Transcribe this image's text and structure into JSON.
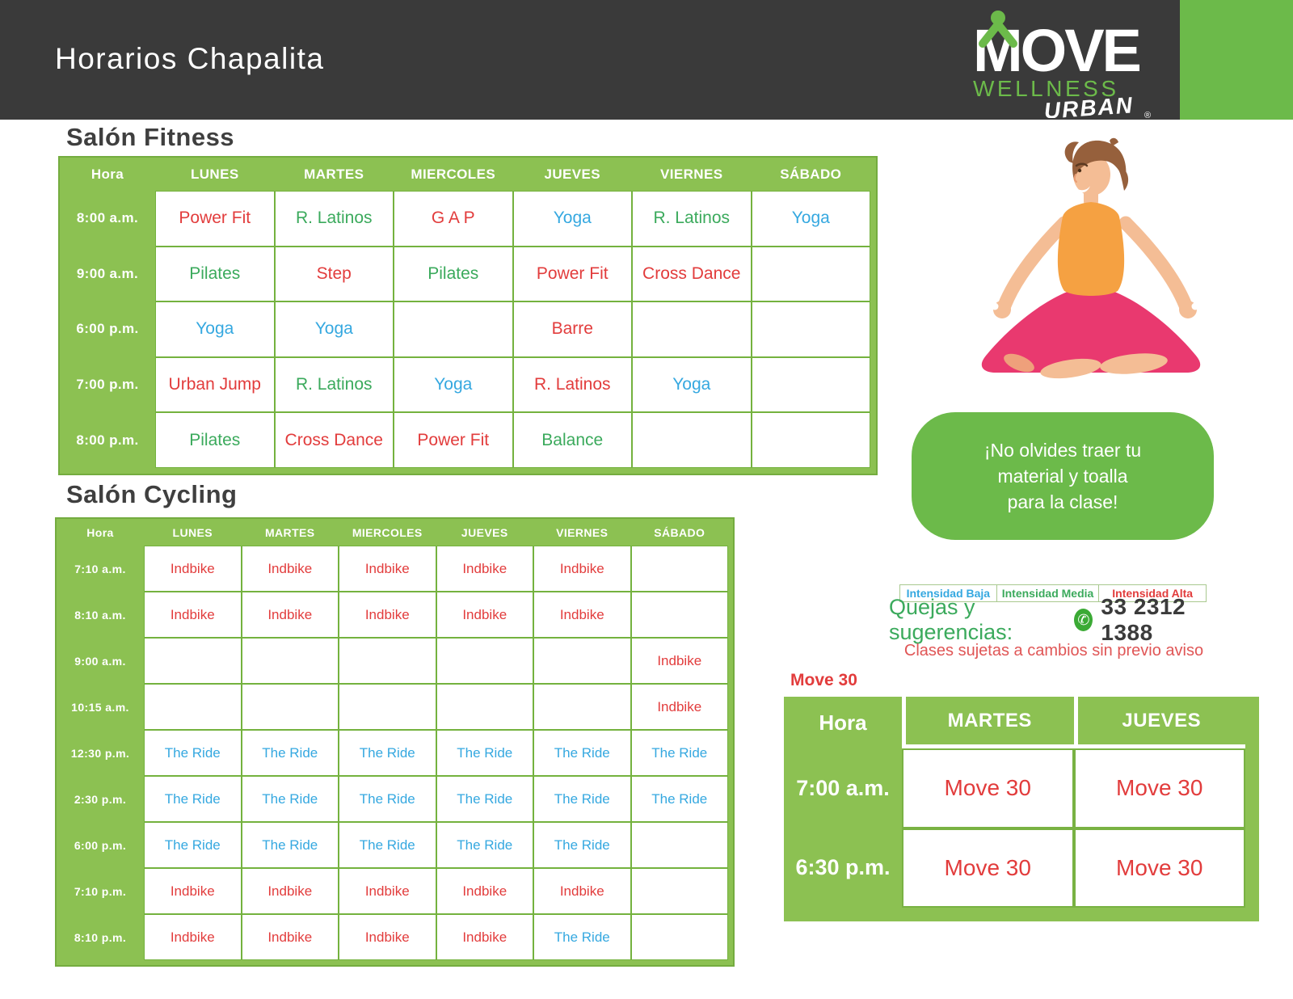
{
  "header": {
    "title": "Horarios Chapalita",
    "logo": {
      "move": "MOVE",
      "wellness": "WELLNESS",
      "urban": "URBAN",
      "registered": "®"
    }
  },
  "fitness": {
    "title": "Salón Fitness",
    "columns": [
      "Hora",
      "LUNES",
      "MARTES",
      "MIERCOLES",
      "JUEVES",
      "VIERNES",
      "SÁBADO"
    ],
    "rows": [
      {
        "time": "8:00 a.m.",
        "cells": [
          {
            "label": "Power Fit",
            "intensity": "alta"
          },
          {
            "label": "R. Latinos",
            "intensity": "media"
          },
          {
            "label": "G A P",
            "intensity": "alta"
          },
          {
            "label": "Yoga",
            "intensity": "baja"
          },
          {
            "label": "R. Latinos",
            "intensity": "media"
          },
          {
            "label": "Yoga",
            "intensity": "baja"
          }
        ]
      },
      {
        "time": "9:00 a.m.",
        "cells": [
          {
            "label": "Pilates",
            "intensity": "media"
          },
          {
            "label": "Step",
            "intensity": "alta"
          },
          {
            "label": "Pilates",
            "intensity": "media"
          },
          {
            "label": "Power Fit",
            "intensity": "alta"
          },
          {
            "label": "Cross Dance",
            "intensity": "alta"
          },
          {
            "label": "",
            "intensity": ""
          }
        ]
      },
      {
        "time": "6:00 p.m.",
        "cells": [
          {
            "label": "Yoga",
            "intensity": "baja"
          },
          {
            "label": "Yoga",
            "intensity": "baja"
          },
          {
            "label": "",
            "intensity": ""
          },
          {
            "label": "Barre",
            "intensity": "alta"
          },
          {
            "label": "",
            "intensity": ""
          },
          {
            "label": "",
            "intensity": ""
          }
        ]
      },
      {
        "time": "7:00 p.m.",
        "cells": [
          {
            "label": "Urban Jump",
            "intensity": "alta"
          },
          {
            "label": "R. Latinos",
            "intensity": "media"
          },
          {
            "label": "Yoga",
            "intensity": "baja"
          },
          {
            "label": "R. Latinos",
            "intensity": "alta"
          },
          {
            "label": "Yoga",
            "intensity": "baja"
          },
          {
            "label": "",
            "intensity": ""
          }
        ]
      },
      {
        "time": "8:00 p.m.",
        "cells": [
          {
            "label": "Pilates",
            "intensity": "media"
          },
          {
            "label": "Cross Dance",
            "intensity": "alta"
          },
          {
            "label": "Power Fit",
            "intensity": "alta"
          },
          {
            "label": "Balance",
            "intensity": "media"
          },
          {
            "label": "",
            "intensity": ""
          },
          {
            "label": "",
            "intensity": ""
          }
        ]
      }
    ]
  },
  "cycling": {
    "title": "Salón Cycling",
    "columns": [
      "Hora",
      "LUNES",
      "MARTES",
      "MIERCOLES",
      "JUEVES",
      "VIERNES",
      "SÁBADO"
    ],
    "rows": [
      {
        "time": "7:10 a.m.",
        "cells": [
          {
            "label": "Indbike",
            "intensity": "alta"
          },
          {
            "label": "Indbike",
            "intensity": "alta"
          },
          {
            "label": "Indbike",
            "intensity": "alta"
          },
          {
            "label": "Indbike",
            "intensity": "alta"
          },
          {
            "label": "Indbike",
            "intensity": "alta"
          },
          {
            "label": "",
            "intensity": ""
          }
        ]
      },
      {
        "time": "8:10 a.m.",
        "cells": [
          {
            "label": "Indbike",
            "intensity": "alta"
          },
          {
            "label": "Indbike",
            "intensity": "alta"
          },
          {
            "label": "Indbike",
            "intensity": "alta"
          },
          {
            "label": "Indbike",
            "intensity": "alta"
          },
          {
            "label": "Indbike",
            "intensity": "alta"
          },
          {
            "label": "",
            "intensity": ""
          }
        ]
      },
      {
        "time": "9:00 a.m.",
        "cells": [
          {
            "label": "",
            "intensity": ""
          },
          {
            "label": "",
            "intensity": ""
          },
          {
            "label": "",
            "intensity": ""
          },
          {
            "label": "",
            "intensity": ""
          },
          {
            "label": "",
            "intensity": ""
          },
          {
            "label": "Indbike",
            "intensity": "alta"
          }
        ]
      },
      {
        "time": "10:15 a.m.",
        "cells": [
          {
            "label": "",
            "intensity": ""
          },
          {
            "label": "",
            "intensity": ""
          },
          {
            "label": "",
            "intensity": ""
          },
          {
            "label": "",
            "intensity": ""
          },
          {
            "label": "",
            "intensity": ""
          },
          {
            "label": "Indbike",
            "intensity": "alta"
          }
        ]
      },
      {
        "time": "12:30 p.m.",
        "cells": [
          {
            "label": "The Ride",
            "intensity": "baja"
          },
          {
            "label": "The Ride",
            "intensity": "baja"
          },
          {
            "label": "The Ride",
            "intensity": "baja"
          },
          {
            "label": "The Ride",
            "intensity": "baja"
          },
          {
            "label": "The Ride",
            "intensity": "baja"
          },
          {
            "label": "The Ride",
            "intensity": "baja"
          }
        ]
      },
      {
        "time": "2:30 p.m.",
        "cells": [
          {
            "label": "The Ride",
            "intensity": "baja"
          },
          {
            "label": "The Ride",
            "intensity": "baja"
          },
          {
            "label": "The Ride",
            "intensity": "baja"
          },
          {
            "label": "The Ride",
            "intensity": "baja"
          },
          {
            "label": "The Ride",
            "intensity": "baja"
          },
          {
            "label": "The Ride",
            "intensity": "baja"
          }
        ]
      },
      {
        "time": "6:00 p.m.",
        "cells": [
          {
            "label": "The Ride",
            "intensity": "baja"
          },
          {
            "label": "The Ride",
            "intensity": "baja"
          },
          {
            "label": "The Ride",
            "intensity": "baja"
          },
          {
            "label": "The Ride",
            "intensity": "baja"
          },
          {
            "label": "The Ride",
            "intensity": "baja"
          },
          {
            "label": "",
            "intensity": ""
          }
        ]
      },
      {
        "time": "7:10 p.m.",
        "cells": [
          {
            "label": "Indbike",
            "intensity": "alta"
          },
          {
            "label": "Indbike",
            "intensity": "alta"
          },
          {
            "label": "Indbike",
            "intensity": "alta"
          },
          {
            "label": "Indbike",
            "intensity": "alta"
          },
          {
            "label": "Indbike",
            "intensity": "alta"
          },
          {
            "label": "",
            "intensity": ""
          }
        ]
      },
      {
        "time": "8:10 p.m.",
        "cells": [
          {
            "label": "Indbike",
            "intensity": "alta"
          },
          {
            "label": "Indbike",
            "intensity": "alta"
          },
          {
            "label": "Indbike",
            "intensity": "alta"
          },
          {
            "label": "Indbike",
            "intensity": "alta"
          },
          {
            "label": "The Ride",
            "intensity": "baja"
          },
          {
            "label": "",
            "intensity": ""
          }
        ]
      }
    ]
  },
  "move30": {
    "title": "Move 30",
    "columns": [
      "Hora",
      "MARTES",
      "JUEVES"
    ],
    "rows": [
      {
        "time": "7:00 a.m.",
        "cells": [
          {
            "label": "Move 30",
            "intensity": "alta"
          },
          {
            "label": "Move 30",
            "intensity": "alta"
          }
        ]
      },
      {
        "time": "6:30 p.m.",
        "cells": [
          {
            "label": "Move 30",
            "intensity": "alta"
          },
          {
            "label": "Move 30",
            "intensity": "alta"
          }
        ]
      }
    ]
  },
  "note": {
    "text": "¡No olvides traer tu\nmaterial y toalla\npara la clase!"
  },
  "legend": {
    "items": [
      {
        "label": "Intensidad Baja",
        "intensity": "baja"
      },
      {
        "label": "Intensidad Media",
        "intensity": "media"
      },
      {
        "label": "Intensidad Alta",
        "intensity": "alta"
      }
    ]
  },
  "contact": {
    "label": "Quejas y sugerencias:",
    "phone": "33 2312 1388",
    "icon": "whatsapp-icon",
    "icon_glyph": "✆"
  },
  "disclaimer": "Clases sujetas a cambios sin previo aviso",
  "colors": {
    "header_dark": "#3A3A3A",
    "accent_green": "#6CBA4A",
    "table_green": "#8CC152",
    "intensity_baja": "#35A8E0",
    "intensity_media": "#3BAA5C",
    "intensity_alta": "#E23C3C"
  }
}
